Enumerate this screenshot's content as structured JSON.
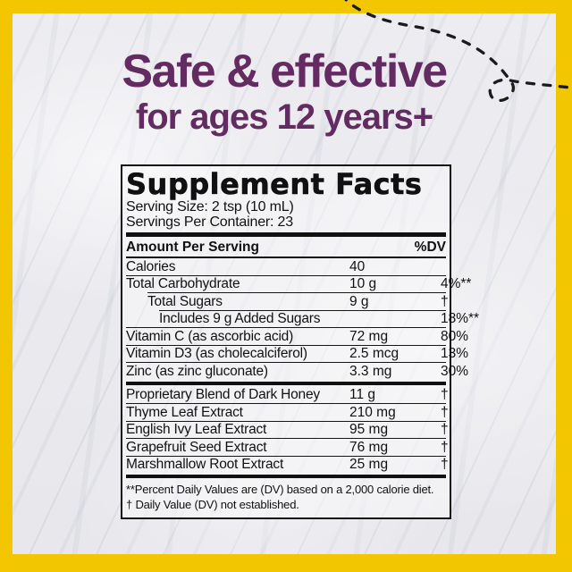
{
  "frame": {
    "border_color": "#F3C602"
  },
  "heading": {
    "line1": "Safe & effective",
    "line2": "for ages 12 years+",
    "color": "#642B62"
  },
  "panel": {
    "title": "Supplement Facts",
    "serving_size": "Serving Size: 2 tsp (10 mL)",
    "servings_per_container": "Servings Per Container: 23",
    "columns": {
      "amount_label": "Amount Per Serving",
      "dv_label": "%DV"
    },
    "rows": [
      {
        "name": "Calories",
        "amount": "40",
        "dv": "",
        "indent": 0,
        "sep": "none"
      },
      {
        "name": "Total Carbohydrate",
        "amount": "10 g",
        "dv": "4%**",
        "indent": 0,
        "sep": "thin"
      },
      {
        "name": "Total Sugars",
        "amount": "9 g",
        "dv": "†",
        "indent": 1,
        "sep": "thin"
      },
      {
        "name": "Includes 9 g Added Sugars",
        "amount": "",
        "dv": "18%**",
        "indent": 2,
        "sep": "thin"
      },
      {
        "name": "Vitamin C (as ascorbic acid)",
        "amount": "72 mg",
        "dv": "80%",
        "indent": 0,
        "sep": "thin"
      },
      {
        "name": "Vitamin D3 (as cholecalciferol)",
        "amount": "2.5 mcg",
        "dv": "13%",
        "indent": 0,
        "sep": "thin"
      },
      {
        "name": "Zinc (as zinc gluconate)",
        "amount": "3.3 mg",
        "dv": "30%",
        "indent": 0,
        "sep": "thin"
      },
      {
        "name": "Proprietary Blend of Dark Honey",
        "amount": "11 g",
        "dv": "†",
        "indent": 0,
        "sep": "thick"
      },
      {
        "name": "Thyme Leaf Extract",
        "amount": "210 mg",
        "dv": "†",
        "indent": 0,
        "sep": "thin"
      },
      {
        "name": "English Ivy Leaf Extract",
        "amount": "95 mg",
        "dv": "†",
        "indent": 0,
        "sep": "thin"
      },
      {
        "name": "Grapefruit Seed Extract",
        "amount": "76 mg",
        "dv": "†",
        "indent": 0,
        "sep": "thin"
      },
      {
        "name": "Marshmallow Root Extract",
        "amount": "25 mg",
        "dv": "†",
        "indent": 0,
        "sep": "thin"
      }
    ],
    "footnotes": [
      "**Percent Daily Values are (DV) based on a 2,000 calorie diet.",
      "† Daily Value (DV) not established."
    ]
  },
  "doodle": {
    "description": "dashed flight path with loop",
    "color": "#1B1B1B"
  }
}
